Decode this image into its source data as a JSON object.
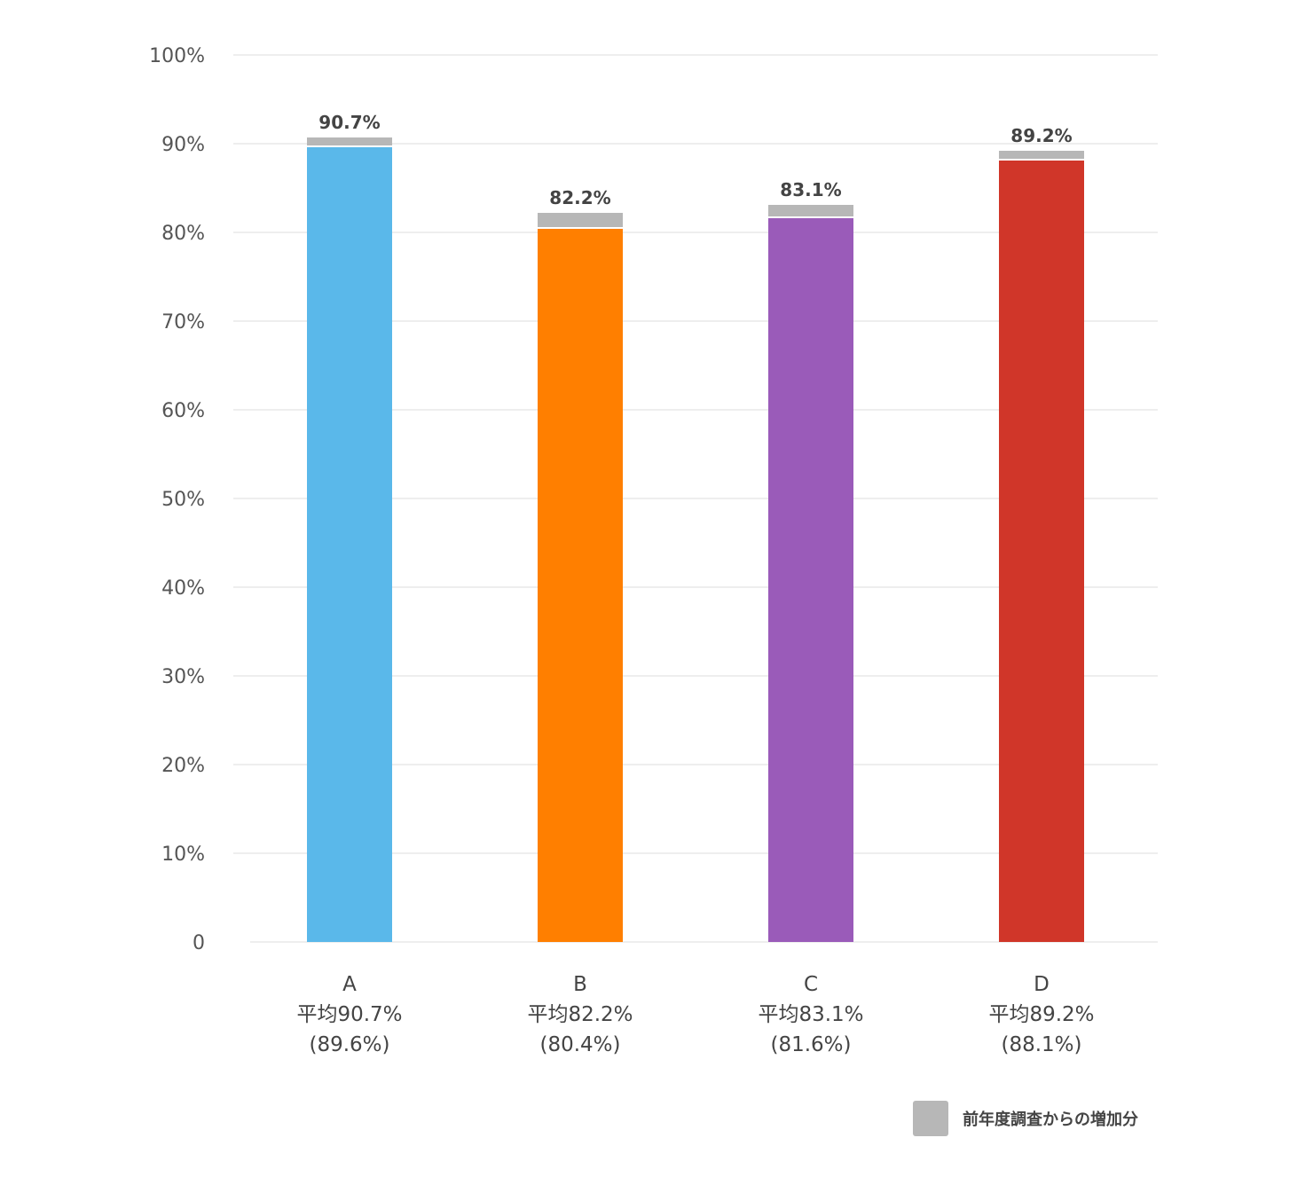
{
  "chart_data": {
    "type": "bar",
    "stacked": true,
    "categories": [
      "A",
      "B",
      "C",
      "D"
    ],
    "series": [
      {
        "name": "",
        "values": [
          89.6,
          80.4,
          81.6,
          88.1
        ]
      },
      {
        "name": "前年度調査からの増加分",
        "values": [
          1.1,
          1.8,
          1.5,
          1.1
        ]
      }
    ],
    "totals": [
      90.7,
      82.2,
      83.1,
      89.2
    ],
    "value_labels": [
      "90.7%",
      "82.2%",
      "83.1%",
      "89.2%"
    ],
    "category_labels": [
      {
        "name": "A",
        "average": "平均90.7%",
        "previous": "(89.6%)"
      },
      {
        "name": "B",
        "average": "平均82.2%",
        "previous": "(80.4%)"
      },
      {
        "name": "C",
        "average": "平均83.1%",
        "previous": "(81.6%)"
      },
      {
        "name": "D",
        "average": "平均89.2%",
        "previous": "(88.1%)"
      }
    ],
    "bar_colors": [
      "#5ab8ea",
      "#ff7f00",
      "#9a5bb9",
      "#d03629"
    ],
    "increase_color": "#b7b7b7",
    "ylim": [
      0,
      100
    ],
    "yticks": [
      0,
      10,
      20,
      30,
      40,
      50,
      60,
      70,
      80,
      90,
      100
    ],
    "ytick_labels": [
      "0",
      "10%",
      "20%",
      "30%",
      "40%",
      "50%",
      "60%",
      "70%",
      "80%",
      "90%",
      "100%"
    ],
    "grid": true,
    "legend_position": "bottom-right",
    "xlabel": "",
    "ylabel": "",
    "title": ""
  },
  "legend": {
    "label": "前年度調査からの増加分",
    "color": "#b7b7b7"
  }
}
